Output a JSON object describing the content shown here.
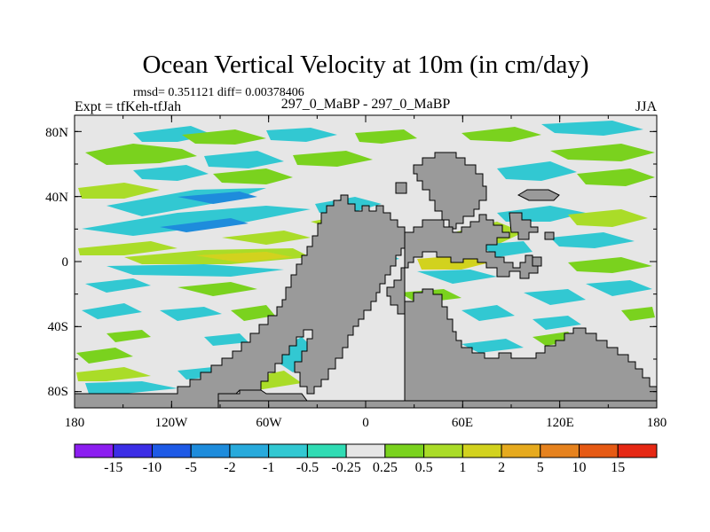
{
  "chart_data": {
    "type": "heatmap",
    "title": "Ocean Vertical Velocity at 10m (in cm/day)",
    "subtitle_stats": "rmsd= 0.351121 diff= 0.00378406",
    "left_label": "Expt = tfKeh-tfJah",
    "center_label": "297_0_MaBP - 297_0_MaBP",
    "right_label": "JJA",
    "x_range": [
      -180,
      180
    ],
    "y_range": [
      -90,
      90
    ],
    "x_ticks": [
      "180",
      "120W",
      "60W",
      "0",
      "60E",
      "120E",
      "180"
    ],
    "y_ticks": [
      "80N",
      "40N",
      "0",
      "40S",
      "80S"
    ],
    "colorbar": {
      "labels": [
        "-15",
        "-10",
        "-5",
        "-2",
        "-1",
        "-0.5",
        "-0.25",
        "0.25",
        "0.5",
        "1",
        "2",
        "5",
        "10",
        "15"
      ],
      "colors": [
        "#8c1ef0",
        "#3c2ee6",
        "#1e5ae6",
        "#1e8cdc",
        "#28aadc",
        "#32c8d2",
        "#30dcb4",
        "#e6e6e6",
        "#7ad21e",
        "#aadc28",
        "#d2d21e",
        "#e6aa1e",
        "#e6821e",
        "#e65a14",
        "#e62814"
      ]
    },
    "land_color": "#9a9a9a",
    "neutral_color": "#e6e6e6"
  }
}
